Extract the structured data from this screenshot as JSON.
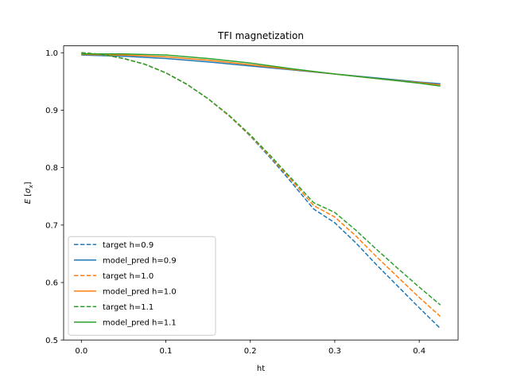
{
  "chart_data": {
    "type": "line",
    "title": "TFI magnetization",
    "xlabel": "ht",
    "ylabel_base": "E",
    "ylabel_inner": "σ",
    "ylabel_sub": "x",
    "xlim": [
      -0.021,
      0.446
    ],
    "ylim": [
      0.5,
      1.012
    ],
    "xticks": [
      0.0,
      0.1,
      0.2,
      0.3,
      0.4
    ],
    "xtick_labels": [
      "0.0",
      "0.1",
      "0.2",
      "0.3",
      "0.4"
    ],
    "yticks": [
      0.5,
      0.6,
      0.7,
      0.8,
      0.9,
      1.0
    ],
    "ytick_labels": [
      "0.5",
      "0.6",
      "0.7",
      "0.8",
      "0.9",
      "1.0"
    ],
    "grid": false,
    "legend_position": "lower-left",
    "series": [
      {
        "name": "target h=0.9",
        "style": "dashed",
        "color": "#1f77b4",
        "x": [
          0,
          0.025,
          0.05,
          0.075,
          0.1,
          0.125,
          0.15,
          0.175,
          0.2,
          0.225,
          0.25,
          0.275,
          0.3,
          0.325,
          0.35,
          0.375,
          0.4,
          0.425
        ],
        "y": [
          1.0,
          0.997,
          0.99,
          0.98,
          0.965,
          0.945,
          0.92,
          0.89,
          0.855,
          0.815,
          0.772,
          0.728,
          0.704,
          0.669,
          0.63,
          0.593,
          0.556,
          0.52
        ]
      },
      {
        "name": "model_pred h=0.9",
        "style": "solid",
        "color": "#1f77b4",
        "x": [
          0,
          0.05,
          0.1,
          0.15,
          0.2,
          0.25,
          0.3,
          0.35,
          0.4,
          0.425
        ],
        "y": [
          0.996,
          0.994,
          0.99,
          0.984,
          0.977,
          0.97,
          0.963,
          0.956,
          0.949,
          0.946
        ]
      },
      {
        "name": "target h=1.0",
        "style": "dashed",
        "color": "#ff7f0e",
        "x": [
          0,
          0.025,
          0.05,
          0.075,
          0.1,
          0.125,
          0.15,
          0.175,
          0.2,
          0.225,
          0.25,
          0.275,
          0.3,
          0.325,
          0.35,
          0.375,
          0.4,
          0.425
        ],
        "y": [
          1.0,
          0.997,
          0.99,
          0.98,
          0.965,
          0.945,
          0.92,
          0.89,
          0.856,
          0.817,
          0.776,
          0.734,
          0.714,
          0.681,
          0.644,
          0.609,
          0.574,
          0.541
        ]
      },
      {
        "name": "model_pred h=1.0",
        "style": "solid",
        "color": "#ff7f0e",
        "x": [
          0,
          0.05,
          0.1,
          0.15,
          0.2,
          0.25,
          0.3,
          0.35,
          0.4,
          0.425
        ],
        "y": [
          0.997,
          0.996,
          0.993,
          0.987,
          0.979,
          0.971,
          0.963,
          0.955,
          0.948,
          0.944
        ]
      },
      {
        "name": "target h=1.1",
        "style": "dashed",
        "color": "#2ca02c",
        "x": [
          0,
          0.025,
          0.05,
          0.075,
          0.1,
          0.125,
          0.15,
          0.175,
          0.2,
          0.225,
          0.25,
          0.275,
          0.3,
          0.325,
          0.35,
          0.375,
          0.4,
          0.425
        ],
        "y": [
          1.0,
          0.997,
          0.99,
          0.98,
          0.965,
          0.945,
          0.92,
          0.891,
          0.857,
          0.819,
          0.779,
          0.739,
          0.722,
          0.691,
          0.657,
          0.624,
          0.592,
          0.561
        ]
      },
      {
        "name": "model_pred h=1.1",
        "style": "solid",
        "color": "#2ca02c",
        "x": [
          0,
          0.05,
          0.1,
          0.15,
          0.2,
          0.25,
          0.3,
          0.35,
          0.4,
          0.425
        ],
        "y": [
          0.998,
          0.998,
          0.996,
          0.99,
          0.982,
          0.972,
          0.963,
          0.955,
          0.947,
          0.942
        ]
      }
    ]
  }
}
